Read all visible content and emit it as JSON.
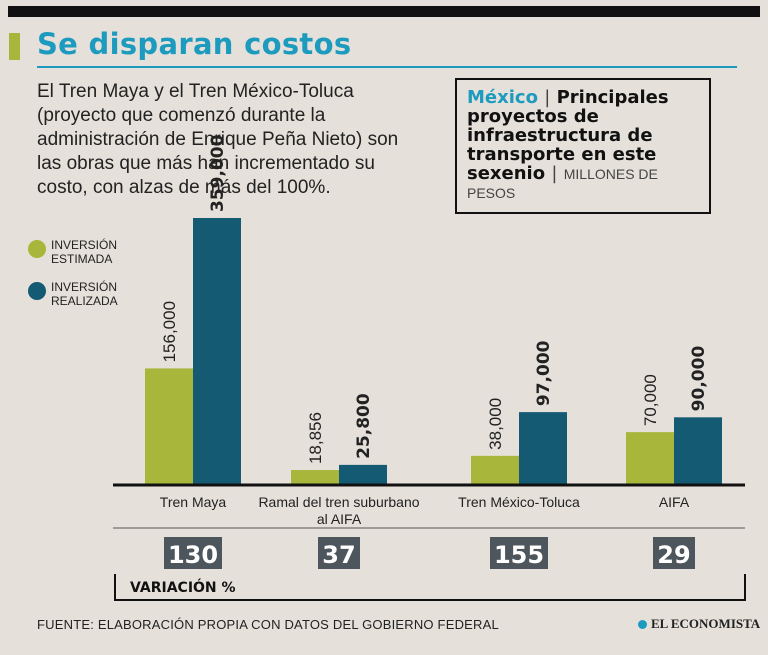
{
  "title": "Se disparan costos",
  "intro": "El Tren Maya y el Tren México-Toluca (proyecto que comenzó durante la administración de Enrique Peña Nieto) son las obras que más han incrementado su costo, con alzas de más del 100%.",
  "info_box": {
    "country": "México",
    "separator": "|",
    "heading": "Principales proyectos de infraestructura de transporte en este sexenio",
    "units": "MILLONES DE PESOS"
  },
  "legend": [
    {
      "label": "INVERSIÓN ESTIMADA",
      "color": "#a8b73b"
    },
    {
      "label": "INVERSIÓN REALIZADA",
      "color": "#145a73"
    }
  ],
  "chart_data": {
    "type": "bar",
    "categories": [
      "Tren Maya",
      "Ramal del tren suburbano al AIFA",
      "Tren México-Toluca",
      "AIFA"
    ],
    "series": [
      {
        "name": "INVERSIÓN ESTIMADA",
        "values": [
          156000,
          18856,
          38000,
          70000
        ],
        "labels": [
          "156,000",
          "18,856",
          "38,000",
          "70,000"
        ]
      },
      {
        "name": "INVERSIÓN REALIZADA",
        "values": [
          359000,
          25800,
          97000,
          90000
        ],
        "labels": [
          "359,000",
          "25,800",
          "97,000",
          "90,000"
        ]
      }
    ],
    "variation_label": "VARIACIÓN %",
    "variation": [
      130,
      37,
      155,
      29
    ],
    "ylim": [
      0,
      359000
    ],
    "colors": {
      "estimada": "#a8b73b",
      "realizada": "#145a73",
      "badge": "#4d565c"
    }
  },
  "footer": {
    "source": "FUENTE: ELABORACIÓN PROPIA CON DATOS DEL GOBIERNO FEDERAL",
    "logo": "EL ECONOMISTA"
  }
}
